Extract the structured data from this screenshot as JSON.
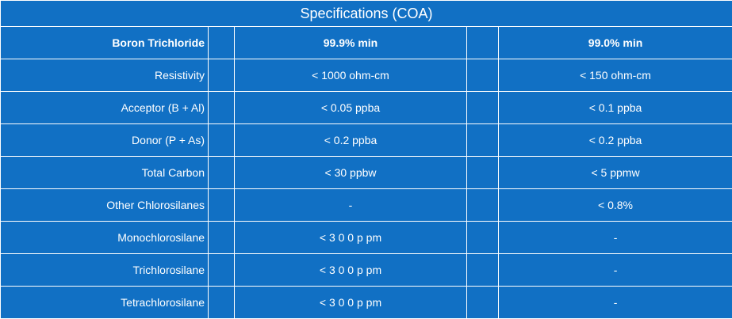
{
  "table": {
    "title": "Specifications  (COA)",
    "rows": [
      [
        "Boron Trichloride",
        "99.9% min",
        "99.0% min"
      ],
      [
        "Resistivity",
        "< 1000 ohm-cm",
        "< 150 ohm-cm"
      ],
      [
        "Acceptor (B + Al)",
        "< 0.05 ppba",
        "< 0.1 ppba"
      ],
      [
        "Donor (P + As)",
        "< 0.2 ppba",
        "< 0.2 ppba"
      ],
      [
        "Total Carbon",
        "< 30 ppbw",
        "< 5 ppmw"
      ],
      [
        "Other Chlorosilanes",
        "-",
        "< 0.8%"
      ],
      [
        "Monochlorosilane",
        "< 3 0 0 p pm",
        "-"
      ],
      [
        "Trichlorosilane",
        "< 3 0 0 p pm",
        "-"
      ],
      [
        "Tetrachlorosilane",
        "< 3 0 0 p pm",
        "-"
      ]
    ]
  }
}
